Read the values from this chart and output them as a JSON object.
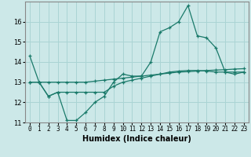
{
  "xlabel": "Humidex (Indice chaleur)",
  "background_color": "#cce8e8",
  "grid_color": "#aad4d4",
  "line_color": "#1a7a6a",
  "x_hours": [
    0,
    1,
    2,
    3,
    4,
    5,
    6,
    7,
    8,
    9,
    10,
    11,
    12,
    13,
    14,
    15,
    16,
    17,
    18,
    19,
    20,
    21,
    22,
    23
  ],
  "series1": [
    14.3,
    13.0,
    12.3,
    12.5,
    11.1,
    11.1,
    11.5,
    12.0,
    12.3,
    13.0,
    13.4,
    13.3,
    13.3,
    14.0,
    15.5,
    15.7,
    16.0,
    16.8,
    15.3,
    15.2,
    14.7,
    13.5,
    13.4,
    13.5
  ],
  "series2": [
    13.0,
    13.0,
    13.0,
    13.0,
    13.0,
    13.0,
    13.0,
    13.05,
    13.1,
    13.15,
    13.2,
    13.25,
    13.3,
    13.35,
    13.4,
    13.45,
    13.5,
    13.52,
    13.55,
    13.58,
    13.6,
    13.62,
    13.65,
    13.67
  ],
  "series3": [
    13.0,
    13.0,
    12.3,
    12.5,
    12.5,
    12.5,
    12.5,
    12.5,
    12.5,
    12.8,
    13.0,
    13.1,
    13.2,
    13.3,
    13.4,
    13.5,
    13.55,
    13.58,
    13.58,
    13.55,
    13.5,
    13.5,
    13.5,
    13.5
  ],
  "ylim": [
    11,
    17
  ],
  "yticks": [
    11,
    12,
    13,
    14,
    15,
    16
  ],
  "xlabel_fontsize": 7,
  "tick_fontsize": 5.5
}
